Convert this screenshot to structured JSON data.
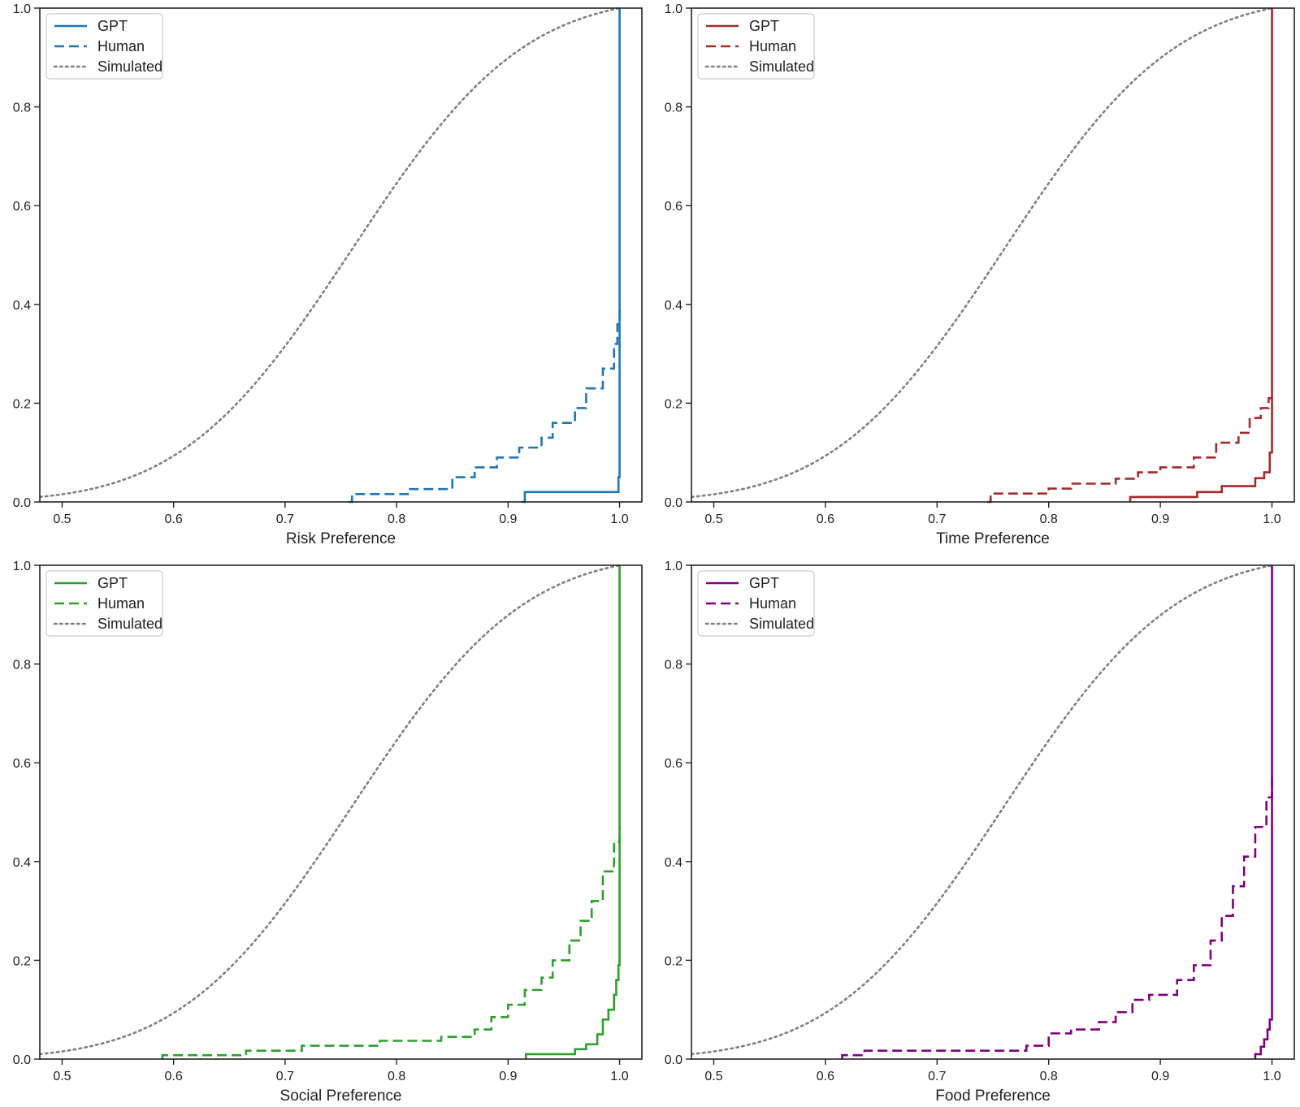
{
  "figure": {
    "title": ""
  },
  "colors": {
    "simulated": "#808080",
    "risk": "#1f77b4",
    "time": "#a52a2a",
    "social": "#2ca02c",
    "food": "#800080"
  },
  "chart_data": [
    {
      "type": "line",
      "title": "",
      "xlabel": "Risk Preference",
      "ylabel": "",
      "xlim": [
        0.48,
        1.02
      ],
      "ylim": [
        0.0,
        1.0
      ],
      "xticks": [
        0.5,
        0.6,
        0.7,
        0.8,
        0.9,
        1.0
      ],
      "xticklabels": [
        "0.5",
        "0.6",
        "0.7",
        "0.8",
        "0.9",
        "1.0"
      ],
      "yticks": [
        0.0,
        0.2,
        0.4,
        0.6,
        0.8,
        1.0
      ],
      "yticklabels": [
        "0.0",
        "0.2",
        "0.4",
        "0.6",
        "0.8",
        "1.0"
      ],
      "legend": {
        "position": "top-left",
        "entries": [
          "GPT",
          "Human",
          "Simulated"
        ]
      },
      "color_key": "risk",
      "series": [
        {
          "name": "GPT",
          "style": "solid",
          "step": true,
          "x": [
            0.912,
            0.915,
            0.915,
            0.999,
            0.999,
            1.0,
            1.0
          ],
          "y": [
            0.0,
            0.0,
            0.02,
            0.02,
            0.05,
            0.05,
            1.0
          ]
        },
        {
          "name": "Human",
          "style": "dashed",
          "step": true,
          "x": [
            0.757,
            0.76,
            0.76,
            0.81,
            0.81,
            0.85,
            0.85,
            0.87,
            0.87,
            0.89,
            0.89,
            0.91,
            0.91,
            0.93,
            0.93,
            0.94,
            0.94,
            0.96,
            0.96,
            0.97,
            0.97,
            0.985,
            0.985,
            0.995,
            0.995,
            0.998,
            0.998,
            1.0,
            1.0
          ],
          "y": [
            0.0,
            0.0,
            0.016,
            0.016,
            0.026,
            0.026,
            0.05,
            0.05,
            0.07,
            0.07,
            0.09,
            0.09,
            0.11,
            0.11,
            0.13,
            0.13,
            0.16,
            0.16,
            0.19,
            0.19,
            0.23,
            0.23,
            0.27,
            0.27,
            0.32,
            0.32,
            0.36,
            0.36,
            0.4
          ]
        },
        {
          "name": "Simulated",
          "style": "dotted",
          "step": false,
          "dist": {
            "kind": "truncated-normal-cdf",
            "mean": 0.76,
            "sd": 0.12,
            "upper": 1.0
          }
        }
      ]
    },
    {
      "type": "line",
      "title": "",
      "xlabel": "Time Preference",
      "ylabel": "",
      "xlim": [
        0.48,
        1.02
      ],
      "ylim": [
        0.0,
        1.0
      ],
      "xticks": [
        0.5,
        0.6,
        0.7,
        0.8,
        0.9,
        1.0
      ],
      "xticklabels": [
        "0.5",
        "0.6",
        "0.7",
        "0.8",
        "0.9",
        "1.0"
      ],
      "yticks": [
        0.0,
        0.2,
        0.4,
        0.6,
        0.8,
        1.0
      ],
      "yticklabels": [
        "0.0",
        "0.2",
        "0.4",
        "0.6",
        "0.8",
        "1.0"
      ],
      "legend": {
        "position": "top-left",
        "entries": [
          "GPT",
          "Human",
          "Simulated"
        ]
      },
      "color_key": "time",
      "series": [
        {
          "name": "GPT",
          "style": "solid",
          "step": true,
          "x": [
            0.873,
            0.873,
            0.933,
            0.933,
            0.955,
            0.955,
            0.985,
            0.985,
            0.993,
            0.993,
            0.998,
            0.998,
            1.0,
            1.0
          ],
          "y": [
            0.0,
            0.01,
            0.01,
            0.02,
            0.02,
            0.032,
            0.032,
            0.048,
            0.048,
            0.06,
            0.06,
            0.1,
            0.1,
            1.0
          ]
        },
        {
          "name": "Human",
          "style": "dashed",
          "step": true,
          "x": [
            0.745,
            0.748,
            0.748,
            0.8,
            0.8,
            0.82,
            0.82,
            0.86,
            0.86,
            0.88,
            0.88,
            0.9,
            0.9,
            0.93,
            0.93,
            0.95,
            0.95,
            0.97,
            0.97,
            0.98,
            0.98,
            0.99,
            0.99,
            0.997,
            0.997,
            1.0,
            1.0
          ],
          "y": [
            0.0,
            0.0,
            0.017,
            0.017,
            0.027,
            0.027,
            0.037,
            0.037,
            0.047,
            0.047,
            0.06,
            0.06,
            0.07,
            0.07,
            0.09,
            0.09,
            0.12,
            0.12,
            0.14,
            0.14,
            0.17,
            0.17,
            0.19,
            0.19,
            0.21,
            0.21,
            0.21
          ]
        },
        {
          "name": "Simulated",
          "style": "dotted",
          "step": false,
          "dist": {
            "kind": "truncated-normal-cdf",
            "mean": 0.76,
            "sd": 0.12,
            "upper": 1.0
          }
        }
      ]
    },
    {
      "type": "line",
      "title": "",
      "xlabel": "Social Preference",
      "ylabel": "",
      "xlim": [
        0.48,
        1.02
      ],
      "ylim": [
        0.0,
        1.0
      ],
      "xticks": [
        0.5,
        0.6,
        0.7,
        0.8,
        0.9,
        1.0
      ],
      "xticklabels": [
        "0.5",
        "0.6",
        "0.7",
        "0.8",
        "0.9",
        "1.0"
      ],
      "yticks": [
        0.0,
        0.2,
        0.4,
        0.6,
        0.8,
        1.0
      ],
      "yticklabels": [
        "0.0",
        "0.2",
        "0.4",
        "0.6",
        "0.8",
        "1.0"
      ],
      "legend": {
        "position": "top-left",
        "entries": [
          "GPT",
          "Human",
          "Simulated"
        ]
      },
      "color_key": "social",
      "series": [
        {
          "name": "GPT",
          "style": "solid",
          "step": true,
          "x": [
            0.916,
            0.916,
            0.96,
            0.96,
            0.97,
            0.97,
            0.98,
            0.98,
            0.985,
            0.985,
            0.99,
            0.99,
            0.995,
            0.995,
            0.997,
            0.997,
            0.999,
            0.999,
            1.0,
            1.0
          ],
          "y": [
            0.0,
            0.01,
            0.01,
            0.02,
            0.02,
            0.03,
            0.03,
            0.05,
            0.05,
            0.08,
            0.08,
            0.1,
            0.1,
            0.13,
            0.13,
            0.16,
            0.16,
            0.19,
            0.19,
            1.0
          ]
        },
        {
          "name": "Human",
          "style": "dashed",
          "step": true,
          "x": [
            0.59,
            0.59,
            0.665,
            0.665,
            0.715,
            0.715,
            0.785,
            0.785,
            0.84,
            0.84,
            0.87,
            0.87,
            0.885,
            0.885,
            0.9,
            0.9,
            0.915,
            0.915,
            0.93,
            0.93,
            0.94,
            0.94,
            0.955,
            0.955,
            0.965,
            0.965,
            0.975,
            0.975,
            0.985,
            0.985,
            0.995,
            0.995,
            1.0,
            1.0
          ],
          "y": [
            0.0,
            0.008,
            0.008,
            0.017,
            0.017,
            0.027,
            0.027,
            0.037,
            0.037,
            0.045,
            0.045,
            0.06,
            0.06,
            0.085,
            0.085,
            0.11,
            0.11,
            0.14,
            0.14,
            0.165,
            0.165,
            0.2,
            0.2,
            0.24,
            0.24,
            0.28,
            0.28,
            0.32,
            0.32,
            0.38,
            0.38,
            0.44,
            0.44,
            0.47
          ]
        },
        {
          "name": "Simulated",
          "style": "dotted",
          "step": false,
          "dist": {
            "kind": "truncated-normal-cdf",
            "mean": 0.76,
            "sd": 0.12,
            "upper": 1.0
          }
        }
      ]
    },
    {
      "type": "line",
      "title": "",
      "xlabel": "Food Preference",
      "ylabel": "",
      "xlim": [
        0.48,
        1.02
      ],
      "ylim": [
        0.0,
        1.0
      ],
      "xticks": [
        0.5,
        0.6,
        0.7,
        0.8,
        0.9,
        1.0
      ],
      "xticklabels": [
        "0.5",
        "0.6",
        "0.7",
        "0.8",
        "0.9",
        "1.0"
      ],
      "yticks": [
        0.0,
        0.2,
        0.4,
        0.6,
        0.8,
        1.0
      ],
      "yticklabels": [
        "0.0",
        "0.2",
        "0.4",
        "0.6",
        "0.8",
        "1.0"
      ],
      "legend": {
        "position": "top-left",
        "entries": [
          "GPT",
          "Human",
          "Simulated"
        ]
      },
      "color_key": "food",
      "series": [
        {
          "name": "GPT",
          "style": "solid",
          "step": true,
          "x": [
            0.985,
            0.985,
            0.99,
            0.99,
            0.993,
            0.993,
            0.996,
            0.996,
            0.998,
            0.998,
            1.0,
            1.0
          ],
          "y": [
            0.0,
            0.01,
            0.01,
            0.025,
            0.025,
            0.04,
            0.04,
            0.06,
            0.06,
            0.08,
            0.08,
            1.0
          ]
        },
        {
          "name": "Human",
          "style": "dashed",
          "step": true,
          "x": [
            0.615,
            0.615,
            0.635,
            0.635,
            0.78,
            0.78,
            0.8,
            0.8,
            0.82,
            0.82,
            0.845,
            0.845,
            0.86,
            0.86,
            0.875,
            0.875,
            0.89,
            0.89,
            0.915,
            0.915,
            0.93,
            0.93,
            0.945,
            0.945,
            0.955,
            0.955,
            0.965,
            0.965,
            0.975,
            0.975,
            0.985,
            0.985,
            0.995,
            0.995,
            1.0,
            1.0
          ],
          "y": [
            0.0,
            0.008,
            0.008,
            0.017,
            0.017,
            0.027,
            0.027,
            0.052,
            0.052,
            0.06,
            0.06,
            0.075,
            0.075,
            0.095,
            0.095,
            0.12,
            0.12,
            0.13,
            0.13,
            0.16,
            0.16,
            0.19,
            0.19,
            0.24,
            0.24,
            0.29,
            0.29,
            0.35,
            0.35,
            0.41,
            0.41,
            0.47,
            0.47,
            0.53,
            0.53,
            0.57
          ]
        },
        {
          "name": "Simulated",
          "style": "dotted",
          "step": false,
          "dist": {
            "kind": "truncated-normal-cdf",
            "mean": 0.76,
            "sd": 0.12,
            "upper": 1.0
          }
        }
      ]
    }
  ]
}
